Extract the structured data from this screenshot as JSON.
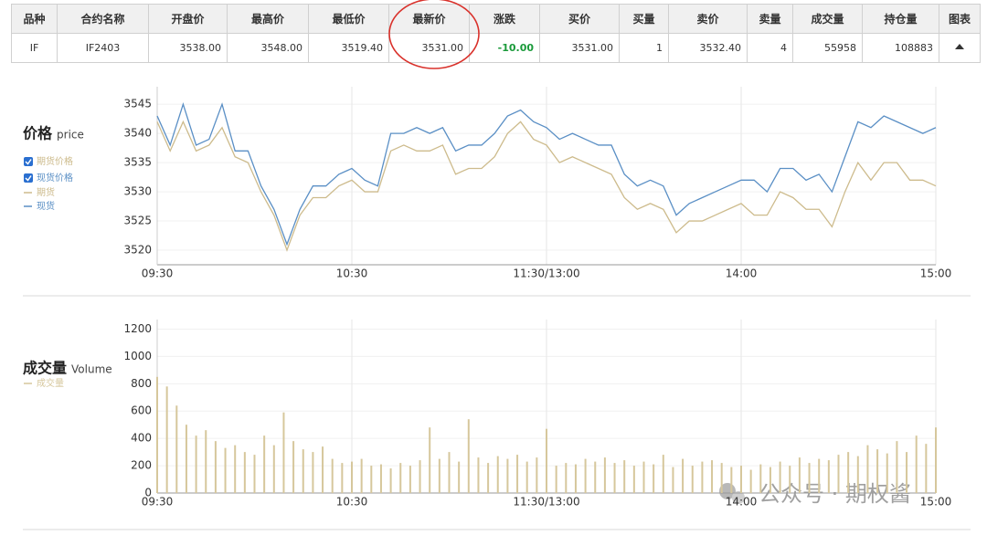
{
  "table": {
    "headers": [
      "品种",
      "合约名称",
      "开盘价",
      "最高价",
      "最低价",
      "最新价",
      "涨跌",
      "买价",
      "买量",
      "卖价",
      "卖量",
      "成交量",
      "持仓量",
      "图表"
    ],
    "rows": [
      [
        "IF",
        "IF2403",
        "3538.00",
        "3548.00",
        "3519.40",
        "3531.00",
        "-10.00",
        "3531.00",
        "1",
        "3532.40",
        "4",
        "55958",
        "108883"
      ]
    ]
  },
  "watermark": "公众号 · 期权酱",
  "chart_data": [
    {
      "type": "line",
      "title": "价格",
      "title_en": "price",
      "toggles": [
        "期货价格",
        "现货价格"
      ],
      "x": [
        0,
        4,
        8,
        12,
        16,
        20,
        24,
        28,
        32,
        36,
        40,
        44,
        48,
        52,
        56,
        60,
        64,
        68,
        72,
        76,
        80,
        84,
        88,
        92,
        96,
        100,
        104,
        108,
        112,
        116,
        120,
        124,
        128,
        132,
        136,
        140,
        144,
        148,
        152,
        156,
        160,
        164,
        168,
        172,
        176,
        180,
        184,
        188,
        192,
        196,
        200,
        204,
        208,
        212,
        216,
        220,
        224,
        228,
        232,
        236,
        240
      ],
      "xlim": [
        0,
        240
      ],
      "xticks": [
        {
          "value": 0,
          "label": "09:30"
        },
        {
          "value": 60,
          "label": "10:30"
        },
        {
          "value": 120,
          "label": "11:30/13:00"
        },
        {
          "value": 180,
          "label": "14:00"
        },
        {
          "value": 240,
          "label": "15:00"
        }
      ],
      "ylim": [
        3517.5,
        3548
      ],
      "yticks": [
        3520,
        3525,
        3530,
        3535,
        3540,
        3545
      ],
      "grid": true,
      "series": [
        {
          "name": "期货",
          "color": "#cdbb8c",
          "values": [
            3542,
            3537,
            3542,
            3537,
            3538,
            3541,
            3536,
            3535,
            3530,
            3526,
            3520,
            3526,
            3529,
            3529,
            3531,
            3532,
            3530,
            3530,
            3537,
            3538,
            3537,
            3537,
            3538,
            3533,
            3534,
            3534,
            3536,
            3540,
            3542,
            3539,
            3538,
            3535,
            3536,
            3535,
            3534,
            3533,
            3529,
            3527,
            3528,
            3527,
            3523,
            3525,
            3525,
            3526,
            3527,
            3528,
            3526,
            3526,
            3530,
            3529,
            3527,
            3527,
            3524,
            3530,
            3535,
            3532,
            3535,
            3535,
            3532,
            3532,
            3531
          ]
        },
        {
          "name": "现货",
          "color": "#5a8fc5",
          "values": [
            3543,
            3538,
            3545,
            3538,
            3539,
            3545,
            3537,
            3537,
            3531,
            3527,
            3521,
            3527,
            3531,
            3531,
            3533,
            3534,
            3532,
            3531,
            3540,
            3540,
            3541,
            3540,
            3541,
            3537,
            3538,
            3538,
            3540,
            3543,
            3544,
            3542,
            3541,
            3539,
            3540,
            3539,
            3538,
            3538,
            3533,
            3531,
            3532,
            3531,
            3526,
            3528,
            3529,
            3530,
            3531,
            3532,
            3532,
            3530,
            3534,
            3534,
            3532,
            3533,
            3530,
            3536,
            3542,
            3541,
            3543,
            3542,
            3541,
            3540,
            3541
          ]
        }
      ]
    },
    {
      "type": "bar",
      "title": "成交量",
      "title_en": "Volume",
      "x": [
        0,
        3,
        6,
        9,
        12,
        15,
        18,
        21,
        24,
        27,
        30,
        33,
        36,
        39,
        42,
        45,
        48,
        51,
        54,
        57,
        60,
        63,
        66,
        69,
        72,
        75,
        78,
        81,
        84,
        87,
        90,
        93,
        96,
        99,
        102,
        105,
        108,
        111,
        114,
        117,
        120,
        123,
        126,
        129,
        132,
        135,
        138,
        141,
        144,
        147,
        150,
        153,
        156,
        159,
        162,
        165,
        168,
        171,
        174,
        177,
        180,
        183,
        186,
        189,
        192,
        195,
        198,
        201,
        204,
        207,
        210,
        213,
        216,
        219,
        222,
        225,
        228,
        231,
        234,
        237,
        240
      ],
      "xlim": [
        0,
        240
      ],
      "xticks": [
        {
          "value": 0,
          "label": "09:30"
        },
        {
          "value": 60,
          "label": "10:30"
        },
        {
          "value": 120,
          "label": "11:30/13:00"
        },
        {
          "value": 180,
          "label": "14:00"
        },
        {
          "value": 240,
          "label": "15:00"
        }
      ],
      "ylim": [
        0,
        1270
      ],
      "yticks": [
        0,
        200,
        400,
        600,
        800,
        1000,
        1200
      ],
      "grid": true,
      "series": [
        {
          "name": "成交量",
          "color": "#d6c79c",
          "values": [
            850,
            780,
            640,
            500,
            420,
            460,
            380,
            330,
            350,
            300,
            280,
            420,
            350,
            590,
            380,
            320,
            300,
            340,
            250,
            220,
            230,
            250,
            200,
            210,
            180,
            220,
            200,
            240,
            480,
            250,
            300,
            230,
            540,
            260,
            220,
            270,
            250,
            280,
            230,
            260,
            470,
            200,
            220,
            210,
            250,
            230,
            260,
            220,
            240,
            200,
            230,
            210,
            280,
            190,
            250,
            200,
            230,
            240,
            220,
            190,
            200,
            170,
            210,
            190,
            230,
            200,
            260,
            220,
            250,
            240,
            280,
            300,
            270,
            350,
            320,
            290,
            380,
            300,
            420,
            360,
            480
          ]
        }
      ]
    }
  ]
}
